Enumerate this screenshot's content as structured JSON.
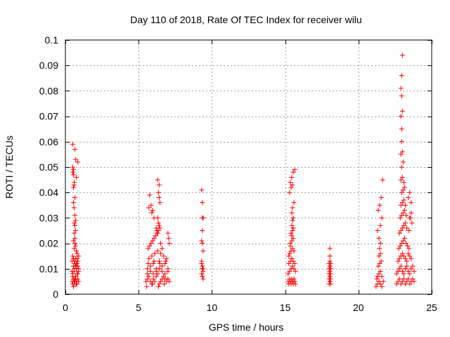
{
  "chart_data": {
    "type": "scatter",
    "title": "Day 110 of 2018, Rate Of TEC Index for receiver wilu",
    "xlabel": "GPS time / hours",
    "ylabel": "ROTI / TECUs",
    "xlim": [
      0,
      25
    ],
    "ylim": [
      0,
      0.1
    ],
    "xticks": [
      0,
      5,
      10,
      15,
      20,
      25
    ],
    "xtick_labels": [
      "0",
      "5",
      "10",
      "15",
      "20",
      "25"
    ],
    "yticks": [
      0,
      0.01,
      0.02,
      0.03,
      0.04,
      0.05,
      0.06,
      0.07,
      0.08,
      0.09,
      0.1
    ],
    "ytick_labels": [
      "0",
      "0.01",
      "0.02",
      "0.03",
      "0.04",
      "0.05",
      "0.06",
      "0.07",
      "0.08",
      "0.09",
      "0.1"
    ],
    "grid": true,
    "marker": "plus",
    "color": "#ff0000",
    "series": [
      {
        "name": "ROTI",
        "x": [
          0.45,
          0.5,
          0.55,
          0.6,
          0.65,
          0.7,
          0.75,
          0.8,
          0.85,
          0.9,
          0.5,
          0.6,
          0.7,
          0.8,
          0.9,
          0.55,
          0.65,
          0.75,
          0.85,
          0.5,
          0.5,
          0.55,
          0.6,
          0.55,
          0.6,
          0.65,
          0.55,
          0.6,
          0.65,
          0.7,
          0.6,
          0.65,
          0.7,
          0.6,
          0.65,
          0.55,
          0.65,
          0.7,
          0.6,
          0.75,
          0.8,
          0.5,
          0.7,
          0.85,
          0.45,
          0.55,
          0.75,
          0.9,
          0.6,
          0.8,
          0.5,
          0.65,
          0.7,
          0.85,
          0.55,
          0.75,
          0.45,
          0.6,
          0.8,
          0.9,
          0.5,
          0.65,
          0.85,
          0.7,
          0.55,
          0.75,
          5.5,
          5.6,
          5.7,
          5.8,
          5.9,
          6.0,
          6.1,
          6.2,
          6.3,
          6.4,
          6.5,
          6.6,
          6.7,
          6.8,
          6.9,
          7.0,
          7.1,
          5.6,
          5.8,
          6.0,
          6.2,
          6.4,
          6.6,
          6.8,
          7.0,
          5.7,
          5.9,
          6.1,
          6.3,
          6.5,
          6.7,
          6.9,
          5.65,
          5.75,
          5.85,
          5.95,
          6.05,
          6.15,
          6.25,
          6.35,
          6.45,
          5.7,
          5.9,
          6.3,
          6.4,
          6.35,
          6.4,
          6.45,
          6.3,
          6.35,
          6.4,
          6.2,
          6.25,
          6.3,
          5.75,
          5.85,
          5.95,
          6.05,
          6.5,
          6.6,
          7.0,
          7.05,
          7.1,
          5.6,
          5.8,
          6.0,
          6.2,
          6.4,
          6.6,
          6.8,
          7.0,
          5.55,
          5.95,
          6.35,
          6.75,
          5.65,
          6.05,
          6.45,
          6.85,
          9.3,
          9.35,
          9.4,
          9.3,
          9.35,
          9.4,
          9.3,
          9.35,
          9.4,
          9.3,
          9.35,
          9.4,
          9.3,
          9.35,
          9.4,
          9.35,
          9.35,
          9.35,
          15.2,
          15.25,
          15.3,
          15.35,
          15.4,
          15.45,
          15.5,
          15.55,
          15.6,
          15.65,
          15.7,
          15.2,
          15.3,
          15.4,
          15.5,
          15.6,
          15.7,
          15.25,
          15.35,
          15.45,
          15.55,
          15.65,
          15.3,
          15.4,
          15.5,
          15.6,
          15.35,
          15.45,
          15.55,
          15.4,
          15.5,
          15.45,
          15.5,
          15.55,
          15.45,
          15.5,
          15.6,
          15.3,
          15.4,
          15.5,
          15.35,
          15.45,
          15.55,
          15.65,
          15.25,
          15.35,
          15.45,
          15.55,
          18.0,
          18.05,
          18.1,
          18.0,
          18.05,
          18.1,
          18.0,
          18.05,
          18.1,
          18.0,
          18.05,
          18.1,
          18.0,
          18.05,
          18.1,
          18.05,
          18.05,
          21.2,
          21.3,
          21.4,
          21.5,
          21.6,
          21.7,
          21.3,
          21.4,
          21.5,
          21.6,
          21.35,
          21.45,
          21.55,
          21.4,
          21.5,
          21.45,
          21.5,
          21.4,
          21.3,
          21.5,
          21.6,
          21.35,
          21.45,
          21.55,
          21.25,
          21.65,
          22.6,
          22.7,
          22.8,
          22.9,
          23.0,
          23.1,
          23.2,
          23.3,
          23.4,
          23.5,
          23.6,
          23.7,
          23.8,
          22.6,
          22.7,
          22.8,
          22.9,
          23.0,
          23.1,
          23.2,
          23.3,
          23.4,
          23.5,
          23.6,
          23.7,
          23.8,
          22.7,
          22.8,
          22.9,
          23.0,
          23.1,
          23.2,
          23.3,
          23.4,
          23.5,
          23.6,
          22.75,
          22.85,
          22.95,
          23.05,
          23.15,
          23.25,
          23.35,
          23.45,
          22.8,
          22.9,
          23.0,
          23.1,
          23.2,
          23.3,
          22.85,
          22.95,
          23.05,
          23.15,
          23.25,
          22.9,
          23.0,
          23.1,
          23.2,
          22.95,
          23.05,
          23.15,
          22.9,
          23.0,
          23.1,
          22.95,
          23.05,
          22.9,
          23.0,
          22.95,
          22.95,
          22.9,
          23.0,
          22.95,
          22.9,
          22.95,
          23.0,
          23.5,
          23.6,
          23.4,
          23.5,
          23.6,
          23.55,
          23.45,
          23.65
        ],
        "y": [
          0.005,
          0.004,
          0.006,
          0.005,
          0.004,
          0.006,
          0.005,
          0.004,
          0.006,
          0.005,
          0.008,
          0.009,
          0.007,
          0.008,
          0.009,
          0.011,
          0.012,
          0.01,
          0.011,
          0.05,
          0.048,
          0.047,
          0.044,
          0.042,
          0.043,
          0.038,
          0.036,
          0.034,
          0.031,
          0.029,
          0.028,
          0.027,
          0.025,
          0.024,
          0.022,
          0.021,
          0.02,
          0.019,
          0.018,
          0.017,
          0.016,
          0.015,
          0.014,
          0.013,
          0.013,
          0.014,
          0.012,
          0.015,
          0.013,
          0.014,
          0.059,
          0.057,
          0.053,
          0.052,
          0.049,
          0.046,
          0.009,
          0.01,
          0.012,
          0.01,
          0.007,
          0.006,
          0.008,
          0.011,
          0.003,
          0.004,
          0.005,
          0.006,
          0.007,
          0.005,
          0.004,
          0.006,
          0.005,
          0.007,
          0.008,
          0.004,
          0.005,
          0.006,
          0.007,
          0.006,
          0.005,
          0.006,
          0.005,
          0.01,
          0.011,
          0.012,
          0.01,
          0.013,
          0.011,
          0.012,
          0.01,
          0.014,
          0.015,
          0.016,
          0.017,
          0.016,
          0.015,
          0.014,
          0.018,
          0.019,
          0.02,
          0.021,
          0.022,
          0.023,
          0.024,
          0.025,
          0.026,
          0.034,
          0.032,
          0.045,
          0.043,
          0.04,
          0.038,
          0.036,
          0.03,
          0.028,
          0.027,
          0.026,
          0.025,
          0.024,
          0.039,
          0.035,
          0.033,
          0.03,
          0.02,
          0.018,
          0.024,
          0.022,
          0.02,
          0.008,
          0.009,
          0.008,
          0.009,
          0.01,
          0.009,
          0.008,
          0.009,
          0.003,
          0.004,
          0.003,
          0.004,
          0.012,
          0.013,
          0.012,
          0.013,
          0.041,
          0.036,
          0.03,
          0.021,
          0.02,
          0.017,
          0.012,
          0.01,
          0.009,
          0.008,
          0.007,
          0.006,
          0.013,
          0.011,
          0.01,
          0.025,
          0.03,
          0.01,
          0.005,
          0.004,
          0.006,
          0.005,
          0.004,
          0.006,
          0.005,
          0.004,
          0.006,
          0.005,
          0.004,
          0.008,
          0.009,
          0.01,
          0.011,
          0.01,
          0.009,
          0.012,
          0.013,
          0.014,
          0.013,
          0.012,
          0.016,
          0.017,
          0.018,
          0.017,
          0.02,
          0.021,
          0.022,
          0.024,
          0.025,
          0.027,
          0.029,
          0.03,
          0.032,
          0.034,
          0.036,
          0.04,
          0.042,
          0.043,
          0.044,
          0.046,
          0.048,
          0.049,
          0.015,
          0.019,
          0.023,
          0.026,
          0.004,
          0.005,
          0.004,
          0.006,
          0.007,
          0.006,
          0.008,
          0.009,
          0.008,
          0.01,
          0.011,
          0.01,
          0.012,
          0.013,
          0.012,
          0.015,
          0.018,
          0.003,
          0.004,
          0.005,
          0.004,
          0.003,
          0.005,
          0.007,
          0.008,
          0.009,
          0.007,
          0.011,
          0.012,
          0.013,
          0.015,
          0.016,
          0.018,
          0.02,
          0.022,
          0.025,
          0.027,
          0.03,
          0.033,
          0.035,
          0.038,
          0.006,
          0.045,
          0.004,
          0.005,
          0.006,
          0.004,
          0.005,
          0.006,
          0.004,
          0.005,
          0.006,
          0.004,
          0.005,
          0.006,
          0.005,
          0.008,
          0.009,
          0.01,
          0.011,
          0.009,
          0.008,
          0.01,
          0.011,
          0.009,
          0.008,
          0.01,
          0.011,
          0.009,
          0.013,
          0.014,
          0.015,
          0.016,
          0.015,
          0.014,
          0.013,
          0.016,
          0.015,
          0.014,
          0.018,
          0.019,
          0.02,
          0.021,
          0.022,
          0.02,
          0.019,
          0.018,
          0.024,
          0.025,
          0.026,
          0.027,
          0.028,
          0.026,
          0.03,
          0.031,
          0.032,
          0.033,
          0.031,
          0.035,
          0.036,
          0.037,
          0.035,
          0.04,
          0.041,
          0.042,
          0.045,
          0.046,
          0.044,
          0.05,
          0.052,
          0.055,
          0.056,
          0.06,
          0.065,
          0.07,
          0.072,
          0.078,
          0.081,
          0.086,
          0.094,
          0.03,
          0.032,
          0.038,
          0.04,
          0.036,
          0.03,
          0.025,
          0.028
        ]
      }
    ]
  }
}
